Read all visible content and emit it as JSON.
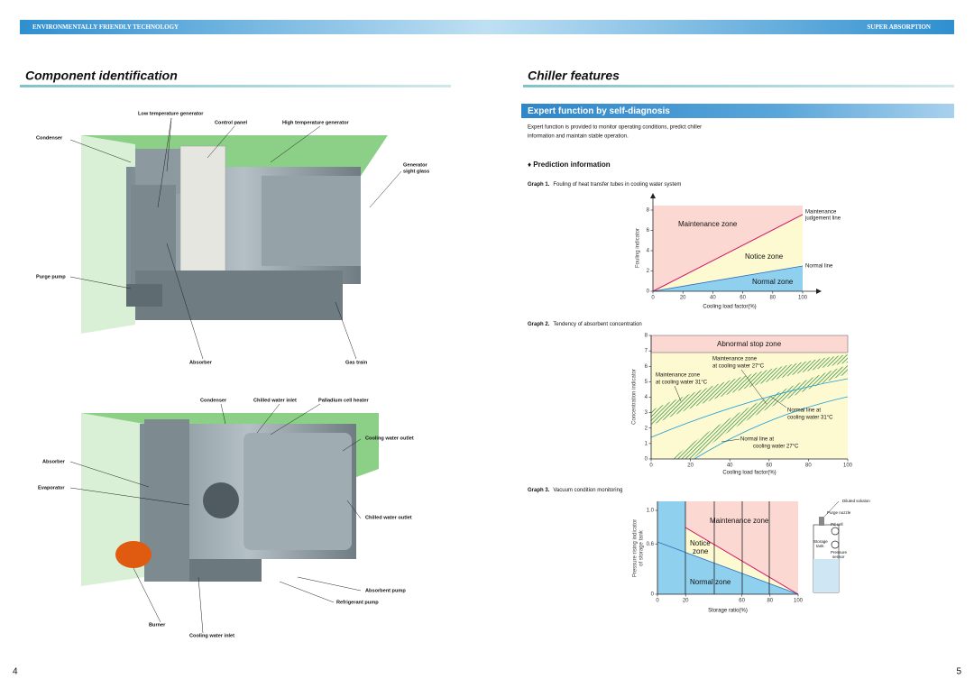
{
  "header": {
    "left": "ENVIRONMENTALLY FRIENDLY TECHNOLOGY",
    "right": "SUPER ABSORPTION"
  },
  "left_page": {
    "title": "Component identification",
    "figure1": {
      "labels": [
        "Low temperature generator",
        "Control panel",
        "High temperature generator",
        "Condenser",
        [
          "Generator",
          "sight glass"
        ],
        "Purge pump",
        "Absorber",
        "Gas train"
      ]
    },
    "figure2": {
      "labels": [
        "Condenser",
        "Chilled water inlet",
        "Palladium cell heater",
        "Cooling water outlet",
        "Absorber",
        "Evaporator",
        "Chilled water outlet",
        "Absorbent pump",
        "Refrigerant pump",
        "Burner",
        "Cooling water inlet"
      ]
    },
    "page_number": "4"
  },
  "right_page": {
    "title": "Chiller features",
    "banner": "Expert function by self-diagnosis",
    "description": [
      "Expert function is provided to monitor operating conditions, predict chiller",
      "information and maintain stable operation."
    ],
    "subheading": "♦ Prediction information",
    "graphs": [
      {
        "label": "Graph 1.",
        "caption": "Fouling of heat transfer tubes in cooling water system",
        "xlabel": "Cooling load factor(%)",
        "ylabel": "Fouling indicator",
        "xlim": [
          0,
          100
        ],
        "ylim": [
          0,
          8
        ],
        "xticks": [
          0,
          20,
          40,
          60,
          80,
          100
        ],
        "yticks": [
          0,
          2,
          4,
          6,
          8
        ],
        "annotations": [
          "Maintenance zone",
          "Notice zone",
          "Normal zone",
          [
            "Maintenance",
            "judgement line"
          ],
          "Normal line"
        ]
      },
      {
        "label": "Graph 2.",
        "caption": "Tendency of absorbent concentration",
        "xlabel": "Cooling load factor(%)",
        "ylabel": "Concentration indicator",
        "xlim": [
          0,
          100
        ],
        "ylim": [
          0,
          8
        ],
        "xticks": [
          0,
          20,
          40,
          60,
          80,
          100
        ],
        "yticks": [
          0,
          1,
          2,
          3,
          4,
          5,
          6,
          7,
          8
        ],
        "annotations": [
          "Abnormal stop zone",
          [
            "Maintenance zone",
            "at cooling water 27°C"
          ],
          [
            "Maintenance zone",
            "at cooling water 31°C"
          ],
          [
            "Normal line at",
            "cooling water 31°C"
          ],
          [
            "Normal line at",
            "cooling water 27°C"
          ]
        ]
      },
      {
        "label": "Graph 3.",
        "caption": "Vacuum condition monitoring",
        "xlabel": "Storage ratio(%)",
        "ylabel": [
          "Pressure rising indicator",
          "of storage tank"
        ],
        "xlim": [
          0,
          100
        ],
        "ylim": [
          0,
          1
        ],
        "xticks": [
          0,
          20,
          60,
          80,
          100
        ],
        "yticks": [
          0,
          0.6,
          {
            "value": 1,
            "label": "1.0"
          }
        ],
        "annotations": [
          "Maintenance zone",
          [
            "Notice",
            "zone"
          ],
          "Normal zone",
          "Diluted solution",
          "Purge nozzle",
          "Pd cell",
          [
            "Storage",
            "tank"
          ],
          [
            "Pressure",
            "sensor"
          ]
        ]
      }
    ],
    "page_number": "5"
  }
}
